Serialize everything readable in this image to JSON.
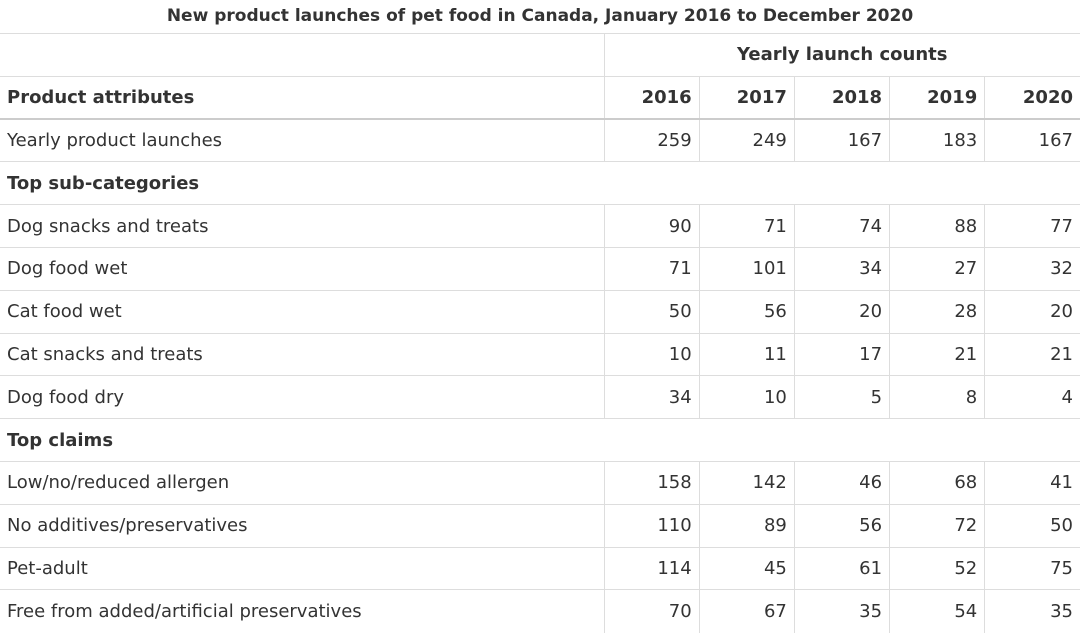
{
  "title": "New product launches of pet food in Canada, January 2016 to December 2020",
  "table": {
    "group_header": "Yearly launch counts",
    "columns": [
      "Product attributes",
      "2016",
      "2017",
      "2018",
      "2019",
      "2020"
    ],
    "rows": [
      {
        "label": "Yearly product launches",
        "values": [
          259,
          249,
          167,
          183,
          167
        ]
      },
      {
        "section": "Top sub-categories"
      },
      {
        "label": "Dog snacks and treats",
        "values": [
          90,
          71,
          74,
          88,
          77
        ]
      },
      {
        "label": "Dog food wet",
        "values": [
          71,
          101,
          34,
          27,
          32
        ]
      },
      {
        "label": "Cat food wet",
        "values": [
          50,
          56,
          20,
          28,
          20
        ]
      },
      {
        "label": "Cat snacks and treats",
        "values": [
          10,
          11,
          17,
          21,
          21
        ]
      },
      {
        "label": "Dog food dry",
        "values": [
          34,
          10,
          5,
          8,
          4
        ]
      },
      {
        "section": "Top claims"
      },
      {
        "label": "Low/no/reduced allergen",
        "values": [
          158,
          142,
          46,
          68,
          41
        ]
      },
      {
        "label": "No additives/preservatives",
        "values": [
          110,
          89,
          56,
          72,
          50
        ]
      },
      {
        "label": "Pet-adult",
        "values": [
          114,
          45,
          61,
          52,
          75
        ]
      },
      {
        "label": "Free from added/artificial preservatives",
        "values": [
          70,
          67,
          35,
          54,
          35
        ]
      }
    ]
  }
}
